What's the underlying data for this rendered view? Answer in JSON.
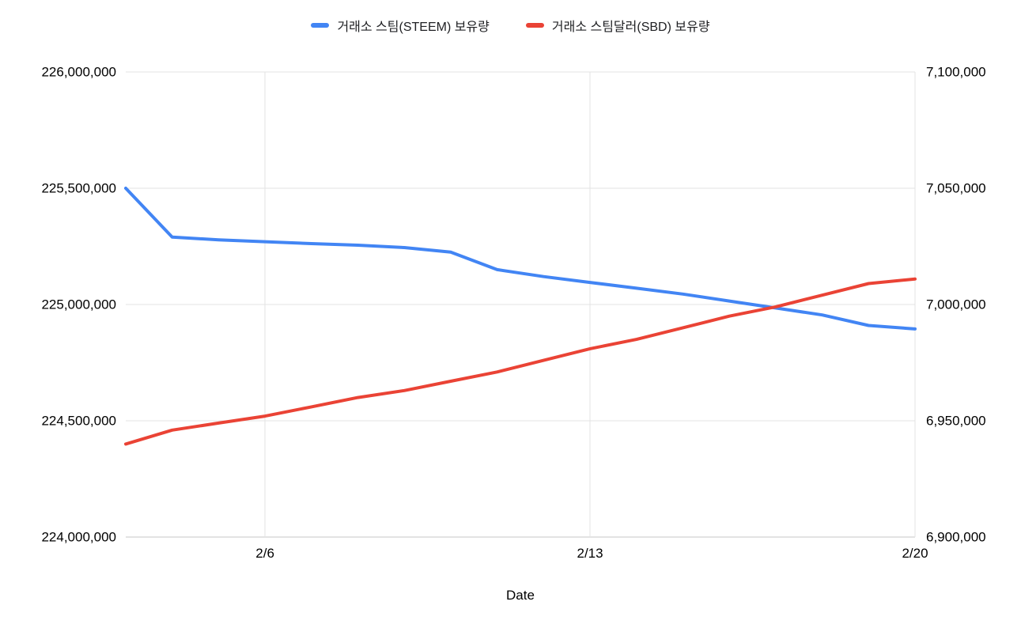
{
  "page": {
    "background": "#ffffff"
  },
  "chart_data": {
    "type": "line",
    "title": "",
    "xlabel": "Date",
    "legend_position": "top",
    "grid": true,
    "categories": [
      "2/3",
      "2/4",
      "2/5",
      "2/6",
      "2/7",
      "2/8",
      "2/9",
      "2/10",
      "2/11",
      "2/12",
      "2/13",
      "2/14",
      "2/15",
      "2/16",
      "2/17",
      "2/18",
      "2/19",
      "2/20"
    ],
    "x_tick_labels": [
      "2/6",
      "2/13",
      "2/20"
    ],
    "left_axis": {
      "min": 224000000,
      "max": 226000000,
      "tick_values": [
        224000000,
        224500000,
        225000000,
        225500000,
        226000000
      ],
      "tick_labels": [
        "224,000,000",
        "224,500,000",
        "225,000,000",
        "225,500,000",
        "226,000,000"
      ]
    },
    "right_axis": {
      "min": 6900000,
      "max": 7100000,
      "tick_values": [
        6900000,
        6950000,
        7000000,
        7050000,
        7100000
      ],
      "tick_labels": [
        "6,900,000",
        "6,950,000",
        "7,000,000",
        "7,050,000",
        "7,100,000"
      ]
    },
    "series": [
      {
        "name": "거래소 스팀(STEEM) 보유량",
        "axis": "left",
        "color": "#4285f4",
        "values": [
          225500000,
          225290000,
          225278000,
          225270000,
          225262000,
          225255000,
          225245000,
          225225000,
          225150000,
          225120000,
          225095000,
          225070000,
          225045000,
          225015000,
          224985000,
          224955000,
          224910000,
          224895000
        ]
      },
      {
        "name": "거래소 스팀달러(SBD) 보유량",
        "axis": "right",
        "color": "#ea4335",
        "values": [
          6940000,
          6946000,
          6949000,
          6952000,
          6956000,
          6960000,
          6963000,
          6967000,
          6971000,
          6976000,
          6981000,
          6985000,
          6990000,
          6995000,
          6999000,
          7004000,
          7009000,
          7011000
        ]
      }
    ]
  }
}
